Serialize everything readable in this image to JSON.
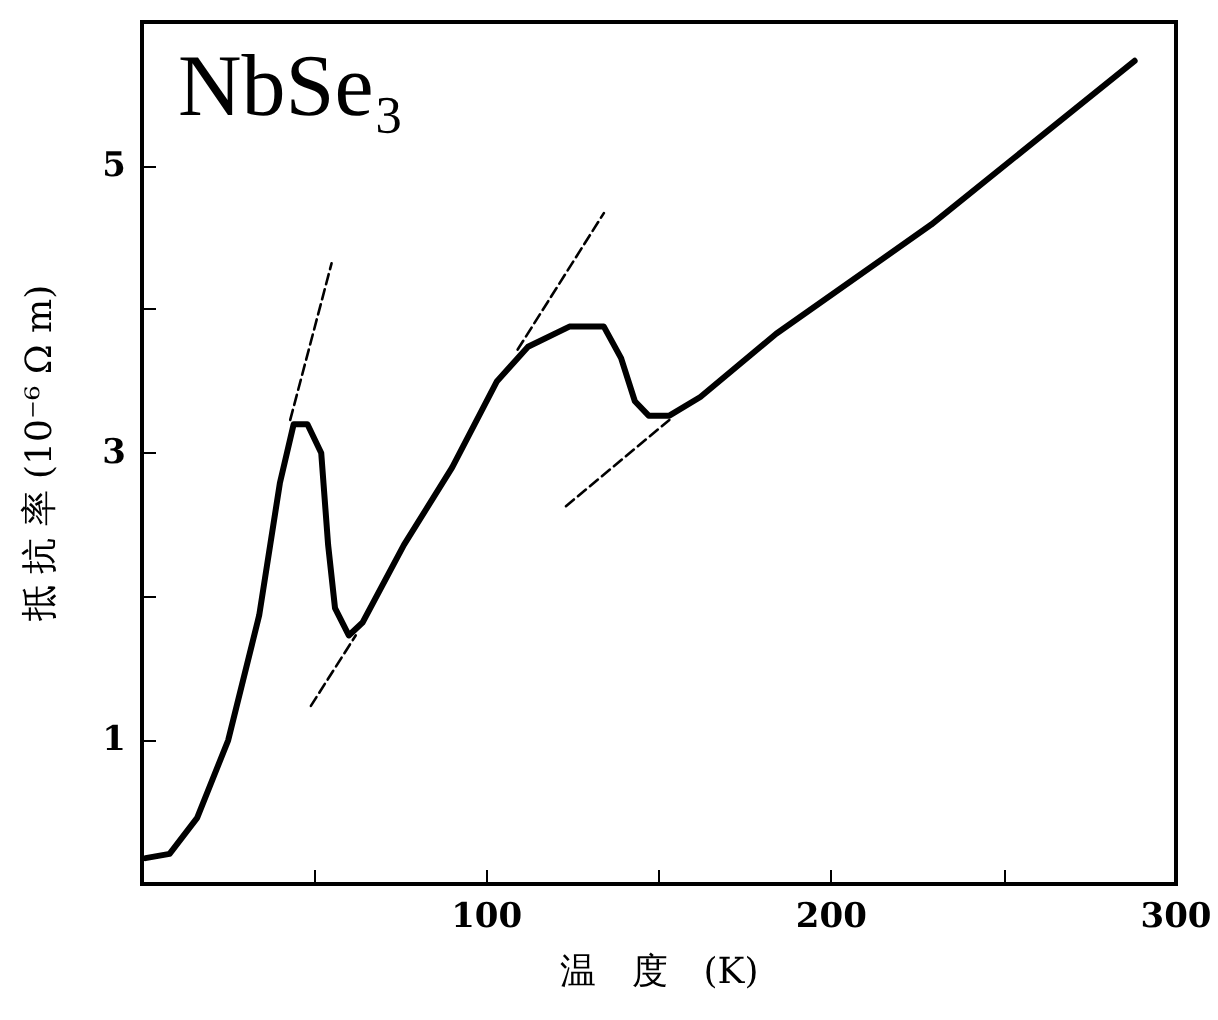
{
  "chart_data": {
    "type": "line",
    "title": "NbSe₃",
    "xlabel": "温　度　(K)",
    "ylabel": "抵 抗 率 (10⁻⁶ Ω m)",
    "xlim": [
      0,
      300
    ],
    "xticks": [
      {
        "value": 50,
        "label": null
      },
      100,
      {
        "value": 150,
        "label": null
      },
      200,
      {
        "value": 250,
        "label": null
      },
      300
    ],
    "ylim": [
      0,
      6
    ],
    "yticks": [
      1,
      {
        "value": 2,
        "label": null
      },
      3,
      {
        "value": 4,
        "label": null
      },
      5
    ],
    "marker": "none",
    "series": [
      {
        "color": "#000000",
        "line_style": "solid",
        "x": [
          1,
          8,
          16,
          25,
          34,
          40,
          44,
          48,
          52,
          54,
          56,
          60,
          64,
          76,
          90,
          103,
          112,
          124,
          134,
          139,
          143,
          147,
          153,
          162,
          184,
          229,
          288
        ],
        "values": [
          0.18,
          0.21,
          0.46,
          1.0,
          1.87,
          2.79,
          3.2,
          3.2,
          3.0,
          2.36,
          1.92,
          1.73,
          1.82,
          2.36,
          2.9,
          3.5,
          3.74,
          3.88,
          3.88,
          3.66,
          3.36,
          3.26,
          3.26,
          3.39,
          3.83,
          4.59,
          5.73
        ]
      },
      {
        "color": "#000000",
        "line_style": "dashed",
        "x": [
          43,
          55
        ],
        "values": [
          3.23,
          4.32
        ]
      },
      {
        "color": "#000000",
        "line_style": "dashed",
        "x": [
          49,
          62
        ],
        "values": [
          1.24,
          1.73
        ]
      },
      {
        "color": "#000000",
        "line_style": "dashed",
        "x": [
          109,
          134
        ],
        "values": [
          3.72,
          4.67
        ]
      },
      {
        "color": "#000000",
        "line_style": "dashed",
        "x": [
          123,
          153
        ],
        "values": [
          2.63,
          3.23
        ]
      }
    ]
  }
}
